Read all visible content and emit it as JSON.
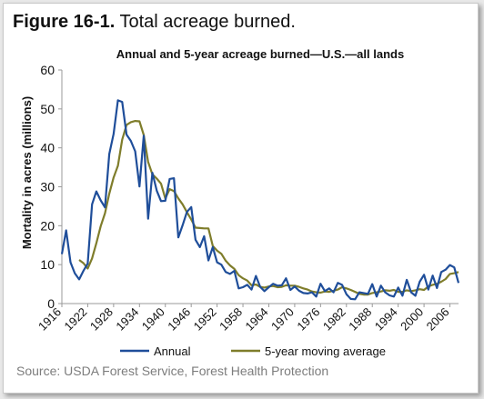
{
  "figure": {
    "number": "Figure 16-1.",
    "caption": "Total acreage burned."
  },
  "source": "Source: USDA Forest Service, Forest Health Protection",
  "colors": {
    "annual": "#1f4e9a",
    "moving_average": "#7f7d2b",
    "axis": "#9a9a9a",
    "text": "#111111"
  },
  "chart_data": {
    "type": "line",
    "title": "Annual and 5-year acreage burned—U.S.—all lands",
    "xlabel": "",
    "ylabel": "Mortality in acres (millions)",
    "xlim": [
      1916,
      2008
    ],
    "ylim": [
      0,
      60
    ],
    "xticks": [
      "1916",
      "1922",
      "1928",
      "1934",
      "1940",
      "1946",
      "1952",
      "1958",
      "1964",
      "1970",
      "1976",
      "1982",
      "1988",
      "1994",
      "2000",
      "2006"
    ],
    "yticks": [
      "0",
      "10",
      "20",
      "30",
      "40",
      "50",
      "60"
    ],
    "grid": false,
    "legend_position": "bottom",
    "series": [
      {
        "name": "Annual",
        "x": [
          1916,
          1917,
          1918,
          1919,
          1920,
          1921,
          1922,
          1923,
          1924,
          1925,
          1926,
          1927,
          1928,
          1929,
          1930,
          1931,
          1932,
          1933,
          1934,
          1935,
          1936,
          1937,
          1938,
          1939,
          1940,
          1941,
          1942,
          1943,
          1944,
          1945,
          1946,
          1947,
          1948,
          1949,
          1950,
          1951,
          1952,
          1953,
          1954,
          1955,
          1956,
          1957,
          1958,
          1959,
          1960,
          1961,
          1962,
          1963,
          1964,
          1965,
          1966,
          1967,
          1968,
          1969,
          1970,
          1971,
          1972,
          1973,
          1974,
          1975,
          1976,
          1977,
          1978,
          1979,
          1980,
          1981,
          1982,
          1983,
          1984,
          1985,
          1986,
          1987,
          1988,
          1989,
          1990,
          1991,
          1992,
          1993,
          1994,
          1995,
          1996,
          1997,
          1998,
          1999,
          2000,
          2001,
          2002,
          2003,
          2004,
          2005,
          2006,
          2007,
          2008
        ],
        "values": [
          12.7,
          18.8,
          10.6,
          7.8,
          6.2,
          8.4,
          10.3,
          25.5,
          28.8,
          26.5,
          24.7,
          38.4,
          43.6,
          52.2,
          51.8,
          43.4,
          41.8,
          39.1,
          30.1,
          43.1,
          21.8,
          33.6,
          29.0,
          26.3,
          26.4,
          32.0,
          32.2,
          17.0,
          20.1,
          23.5,
          24.8,
          16.4,
          14.5,
          17.3,
          11.1,
          14.5,
          10.6,
          10.0,
          8.1,
          7.6,
          8.4,
          3.9,
          4.2,
          4.8,
          3.6,
          7.1,
          4.3,
          3.2,
          4.2,
          5.1,
          4.6,
          4.7,
          6.5,
          3.5,
          4.4,
          3.3,
          2.7,
          2.6,
          2.9,
          1.8,
          5.1,
          3.2,
          3.9,
          2.9,
          5.3,
          4.8,
          2.4,
          1.2,
          1.1,
          2.9,
          2.7,
          2.5,
          5.0,
          1.8,
          4.6,
          2.9,
          2.1,
          1.8,
          4.1,
          2.0,
          6.1,
          2.9,
          2.0,
          5.6,
          7.4,
          3.6,
          7.2,
          4.0,
          8.1,
          8.7,
          9.9,
          9.3,
          5.3
        ]
      },
      {
        "name": "5-year moving average",
        "x": [
          1920,
          1921,
          1922,
          1923,
          1924,
          1925,
          1926,
          1927,
          1928,
          1929,
          1930,
          1931,
          1932,
          1933,
          1934,
          1935,
          1936,
          1937,
          1938,
          1939,
          1940,
          1941,
          1942,
          1943,
          1944,
          1945,
          1946,
          1947,
          1948,
          1949,
          1950,
          1951,
          1952,
          1953,
          1954,
          1955,
          1956,
          1957,
          1958,
          1959,
          1960,
          1961,
          1962,
          1963,
          1964,
          1965,
          1966,
          1967,
          1968,
          1969,
          1970,
          1971,
          1972,
          1973,
          1974,
          1975,
          1976,
          1977,
          1978,
          1979,
          1980,
          1981,
          1982,
          1983,
          1984,
          1985,
          1986,
          1987,
          1988,
          1989,
          1990,
          1991,
          1992,
          1993,
          1994,
          1995,
          1996,
          1997,
          1998,
          1999,
          2000,
          2001,
          2002,
          2003,
          2004,
          2005,
          2006,
          2007,
          2008
        ],
        "values": [
          11.2,
          10.4,
          9.0,
          11.6,
          15.5,
          19.9,
          23.2,
          28.2,
          32.4,
          35.4,
          42.1,
          45.9,
          46.6,
          46.9,
          46.8,
          43.3,
          36.4,
          33.2,
          32.1,
          30.8,
          27.0,
          29.4,
          28.9,
          27.0,
          25.5,
          23.5,
          21.6,
          19.5,
          19.4,
          19.3,
          19.3,
          14.8,
          13.6,
          12.8,
          11.0,
          9.8,
          8.9,
          7.3,
          6.5,
          5.9,
          4.7,
          4.9,
          4.3,
          4.1,
          4.4,
          4.5,
          4.2,
          4.3,
          4.7,
          4.6,
          4.6,
          4.3,
          3.9,
          3.6,
          3.1,
          2.9,
          2.8,
          3.1,
          3.0,
          3.3,
          3.6,
          4.2,
          3.9,
          3.5,
          3.0,
          2.5,
          2.3,
          2.3,
          2.7,
          2.9,
          3.1,
          3.4,
          3.3,
          3.5,
          3.0,
          3.0,
          3.4,
          3.2,
          3.4,
          3.7,
          3.5,
          4.4,
          4.8,
          5.1,
          5.6,
          6.3,
          7.6,
          7.8,
          8.1
        ]
      }
    ]
  }
}
